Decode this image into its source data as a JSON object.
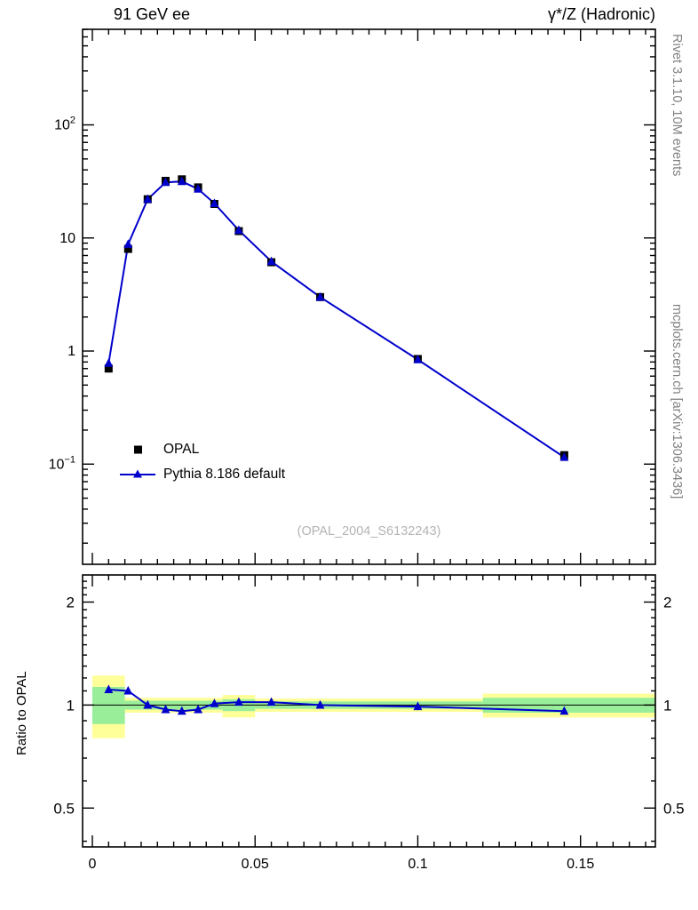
{
  "header": {
    "title_left": "91 GeV ee",
    "title_right": "γ*/Z (Hadronic)"
  },
  "side_notes": {
    "top_right": "Rivet 3.1.10,  10M events",
    "bottom_right": "mcplots.cern.ch [arXiv:1306.3436]"
  },
  "watermark": "(OPAL_2004_S6132243)",
  "ratio_ylabel": "Ratio to OPAL",
  "legend": [
    {
      "label": "OPAL",
      "marker": "filled-square",
      "color": "#000000"
    },
    {
      "label": "Pythia 8.186 default",
      "marker": "line-triangle",
      "color": "#0000cc"
    }
  ],
  "colors": {
    "mc_line": "#0000cc",
    "data_marker": "#000000",
    "band_yellow": "#ffff99",
    "band_green": "#99ee99",
    "frame": "#000000",
    "note_gray": "#808080",
    "watermark_gray": "#b4b4b4"
  },
  "chart_data": [
    {
      "type": "line",
      "panel": "main",
      "y_scale": "log",
      "x_axis": {
        "min": -0.003,
        "max": 0.173,
        "major_ticks": [
          0,
          0.05,
          0.1,
          0.15
        ],
        "major_tick_labels": [
          "0",
          "0.05",
          "0.1",
          "0.15"
        ],
        "minor_tick_step": 0.005
      },
      "y_axis": {
        "min": 0.013,
        "max": 700,
        "decade_labels": [
          {
            "value": 100,
            "base": "10",
            "exp": "2"
          },
          {
            "value": 10,
            "base": "10",
            "exp": ""
          },
          {
            "value": 1,
            "base": "1",
            "exp": ""
          },
          {
            "value": 0.1,
            "base": "10",
            "exp": "−1"
          }
        ]
      },
      "x": [
        0.005,
        0.011,
        0.017,
        0.0225,
        0.0275,
        0.0325,
        0.0375,
        0.045,
        0.055,
        0.07,
        0.1,
        0.145
      ],
      "series": [
        {
          "name": "OPAL",
          "marker": "square",
          "color": "#000000",
          "line": false,
          "y": [
            0.7,
            8.0,
            22.0,
            32.0,
            33.0,
            28.0,
            20.0,
            11.5,
            6.1,
            3.0,
            0.85,
            0.12
          ]
        },
        {
          "name": "Pythia 8.186 default",
          "marker": "triangle",
          "color": "#0000cc",
          "line": true,
          "y": [
            0.78,
            8.8,
            22.0,
            31.0,
            31.6,
            27.1,
            20.2,
            11.7,
            6.2,
            3.0,
            0.84,
            0.115
          ]
        }
      ]
    },
    {
      "type": "ratio",
      "panel": "ratio",
      "y_scale": "log",
      "ylabel": "Ratio to OPAL",
      "y_axis": {
        "min": 0.385,
        "max": 2.4,
        "major_ticks": [
          0.5,
          1,
          2
        ],
        "major_tick_labels": [
          "0.5",
          "1",
          "2"
        ],
        "minor_tick_step": 0.1
      },
      "reference_line": 1,
      "bands": [
        {
          "x0": 0.0,
          "x1": 0.01,
          "yellow": [
            0.8,
            1.22
          ],
          "green": [
            0.88,
            1.13
          ]
        },
        {
          "x0": 0.01,
          "x1": 0.04,
          "yellow": [
            0.95,
            1.05
          ],
          "green": [
            0.97,
            1.03
          ]
        },
        {
          "x0": 0.04,
          "x1": 0.05,
          "yellow": [
            0.92,
            1.07
          ],
          "green": [
            0.96,
            1.04
          ]
        },
        {
          "x0": 0.05,
          "x1": 0.12,
          "yellow": [
            0.955,
            1.045
          ],
          "green": [
            0.975,
            1.025
          ]
        },
        {
          "x0": 0.12,
          "x1": 0.173,
          "yellow": [
            0.92,
            1.08
          ],
          "green": [
            0.95,
            1.05
          ]
        }
      ],
      "series": [
        {
          "name": "Pythia 8.186 default / OPAL",
          "marker": "triangle",
          "color": "#0000cc",
          "line": true,
          "y": [
            1.11,
            1.1,
            1.0,
            0.97,
            0.96,
            0.97,
            1.01,
            1.02,
            1.02,
            1.0,
            0.99,
            0.96
          ]
        }
      ]
    }
  ]
}
